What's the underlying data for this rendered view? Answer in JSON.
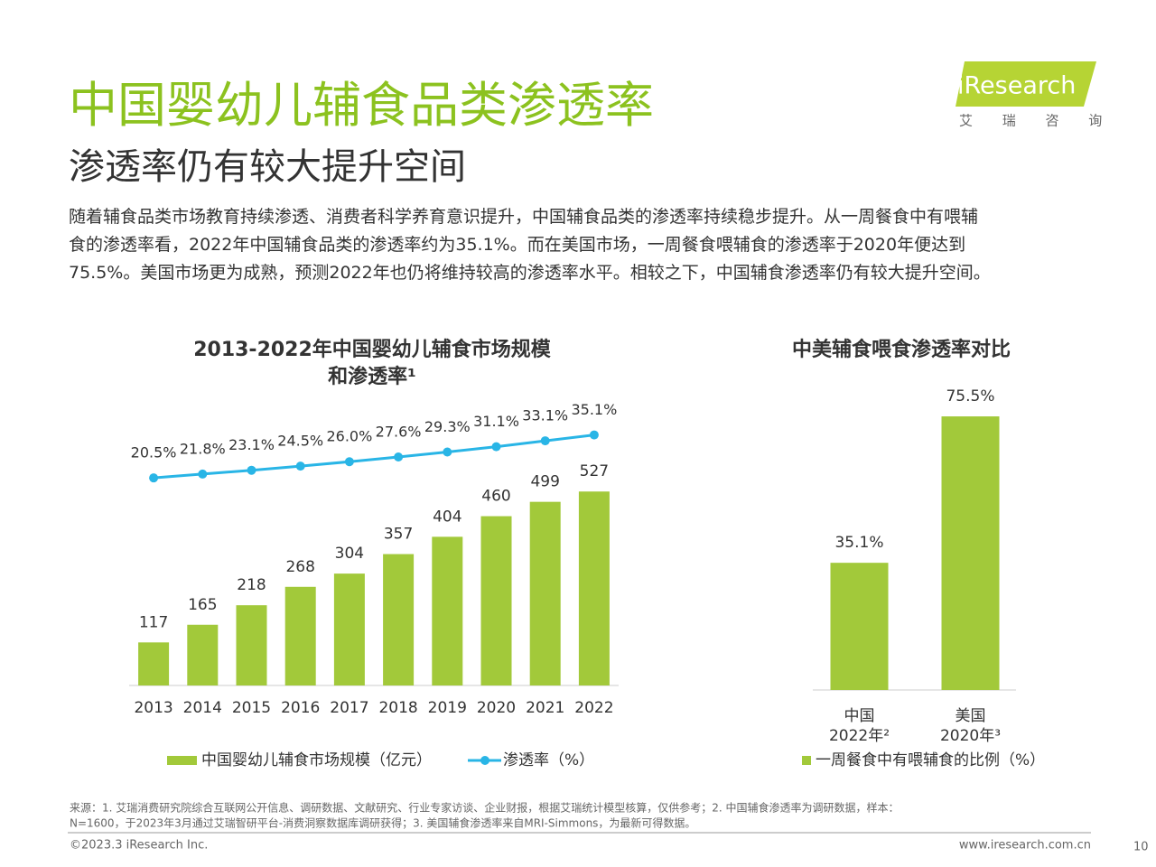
{
  "header": {
    "title": "中国婴幼儿辅食品类渗透率",
    "subtitle": "渗透率仍有较大提升空间",
    "logo": "iResearch",
    "logo_sub": "艾 瑞 咨 询"
  },
  "body": [
    "随着辅食品类市场教育持续渗透、消费者科学养育意识提升，中国辅食品类的渗透率持续稳步提升。从一周餐食中有喂辅",
    "食的渗透率看，2022年中国辅食品类的渗透率约为35.1%。而在美国市场，一周餐食喂辅食的渗透率于2020年便达到",
    "75.5%。美国市场更为成熟，预测2022年也仍将维持较高的渗透率水平。相较之下，中国辅食渗透率仍有较大提升空间。"
  ],
  "chart_data": [
    {
      "type": "combo",
      "title": [
        "2013-2022年中国婴幼儿辅食市场规模",
        "和渗透率¹"
      ],
      "categories": [
        "2013",
        "2014",
        "2015",
        "2016",
        "2017",
        "2018",
        "2019",
        "2020",
        "2021",
        "2022"
      ],
      "ylim": [
        0,
        800
      ],
      "y2lim": [
        -50,
        50
      ],
      "series": [
        {
          "name": "中国婴幼儿辅食市场规模（亿元）",
          "color": "#a2c93a",
          "values": [
            117,
            165,
            218,
            268,
            304,
            357,
            404,
            460,
            499,
            527
          ]
        },
        {
          "name": "渗透率（%）",
          "color": "#29b5e6",
          "type": "line",
          "axis": "y2",
          "values": [
            20.5,
            21.8,
            23.1,
            24.5,
            26.0,
            27.6,
            29.3,
            31.1,
            33.1,
            35.1
          ],
          "value_labels": [
            "20.5%",
            "21.8%",
            "23.1%",
            "24.5%",
            "26.0%",
            "27.6%",
            "29.3%",
            "31.1%",
            "33.1%",
            "35.1%"
          ]
        }
      ]
    },
    {
      "type": "bar",
      "title": [
        "中美辅食喂食渗透率对比"
      ],
      "categories": [
        "中国 2022年²",
        "美国 2020年³"
      ],
      "ylim": [
        0,
        80
      ],
      "series": [
        {
          "name": "一周餐食中有喂辅食的比例（%）",
          "color": "#a2c93a",
          "values": [
            35.1,
            75.5
          ],
          "value_labels": [
            "35.1%",
            "75.5%"
          ]
        }
      ]
    }
  ],
  "footer": {
    "source": [
      "来源：1. 艾瑞消费研究院综合互联网公开信息、调研数据、文献研究、行业专家访谈、企业财报，根据艾瑞统计模型核算，仅供参考；2. 中国辅食渗透率为调研数据，样本：",
      "N=1600，于2023年3月通过艾瑞智研平台-消费洞察数据库调研获得；3. 美国辅食渗透率来自MRI-Simmons，为最新可得数据。"
    ],
    "copyright": "©2023.3 iResearch Inc.",
    "url": "www.iresearch.com.cn",
    "page": "10"
  }
}
